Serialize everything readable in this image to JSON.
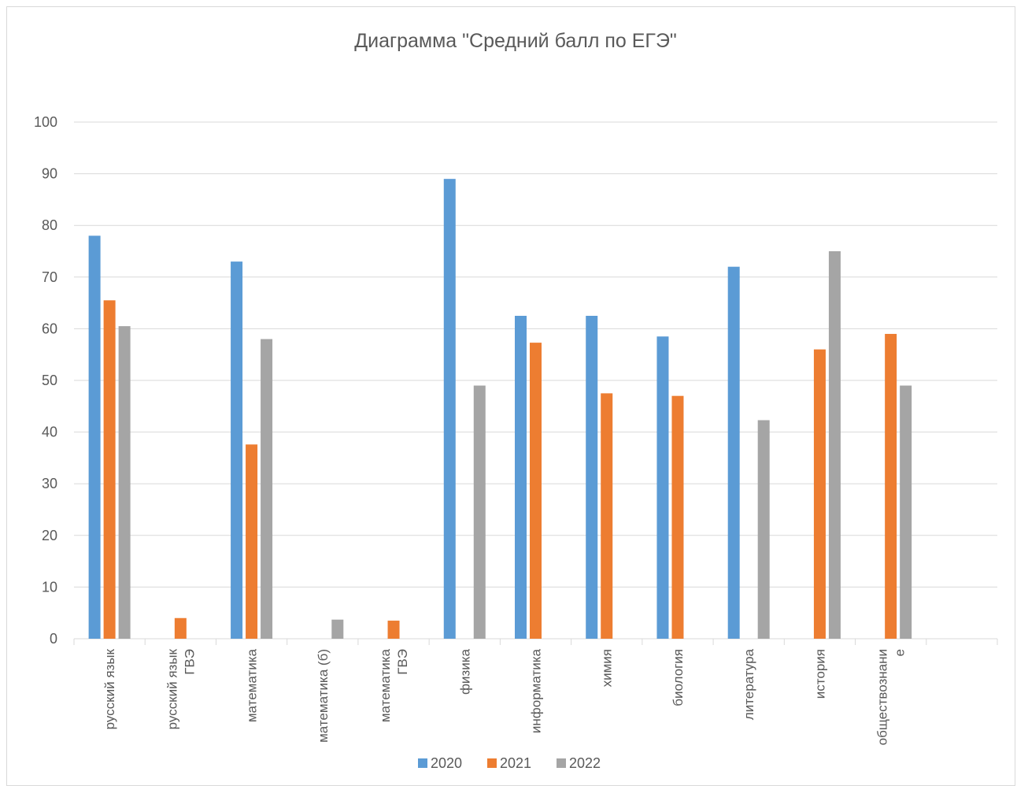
{
  "chart_data": {
    "type": "bar",
    "title": "Диаграмма \"Средний балл по ЕГЭ\"",
    "xlabel": "",
    "ylabel": "",
    "ylim": [
      0,
      100
    ],
    "yticks": [
      0,
      10,
      20,
      30,
      40,
      50,
      60,
      70,
      80,
      90,
      100
    ],
    "grid": true,
    "legend": "bottom",
    "categories": [
      "русский язык",
      "русский язык ГВЭ",
      "математика",
      "математика (б)",
      "математика ГВЭ",
      "физика",
      "информатика",
      "химия",
      "биология",
      "литература",
      "история",
      "обществознание",
      ""
    ],
    "category_lines": [
      [
        "русский язык"
      ],
      [
        "русский язык",
        "ГВЭ"
      ],
      [
        "математика"
      ],
      [
        "математика (б)"
      ],
      [
        "математика",
        "ГВЭ"
      ],
      [
        "физика"
      ],
      [
        "информатика"
      ],
      [
        "химия"
      ],
      [
        "биология"
      ],
      [
        "литература"
      ],
      [
        "история"
      ],
      [
        "обществознани",
        "е"
      ],
      [
        ""
      ]
    ],
    "series": [
      {
        "name": "2020",
        "color": "#5b9bd5",
        "values": [
          78,
          null,
          73,
          null,
          null,
          89,
          62.5,
          62.5,
          58.5,
          72,
          null,
          null,
          null
        ]
      },
      {
        "name": "2021",
        "color": "#ed7d31",
        "values": [
          65.5,
          4,
          37.6,
          null,
          3.5,
          null,
          57.3,
          47.5,
          47,
          null,
          56,
          59,
          null
        ]
      },
      {
        "name": "2022",
        "color": "#a5a5a5",
        "values": [
          60.5,
          null,
          58,
          3.7,
          null,
          49,
          null,
          null,
          null,
          42.3,
          75,
          49,
          null
        ]
      }
    ]
  },
  "colors": {
    "grid": "#d9d9d9",
    "text": "#595959"
  }
}
